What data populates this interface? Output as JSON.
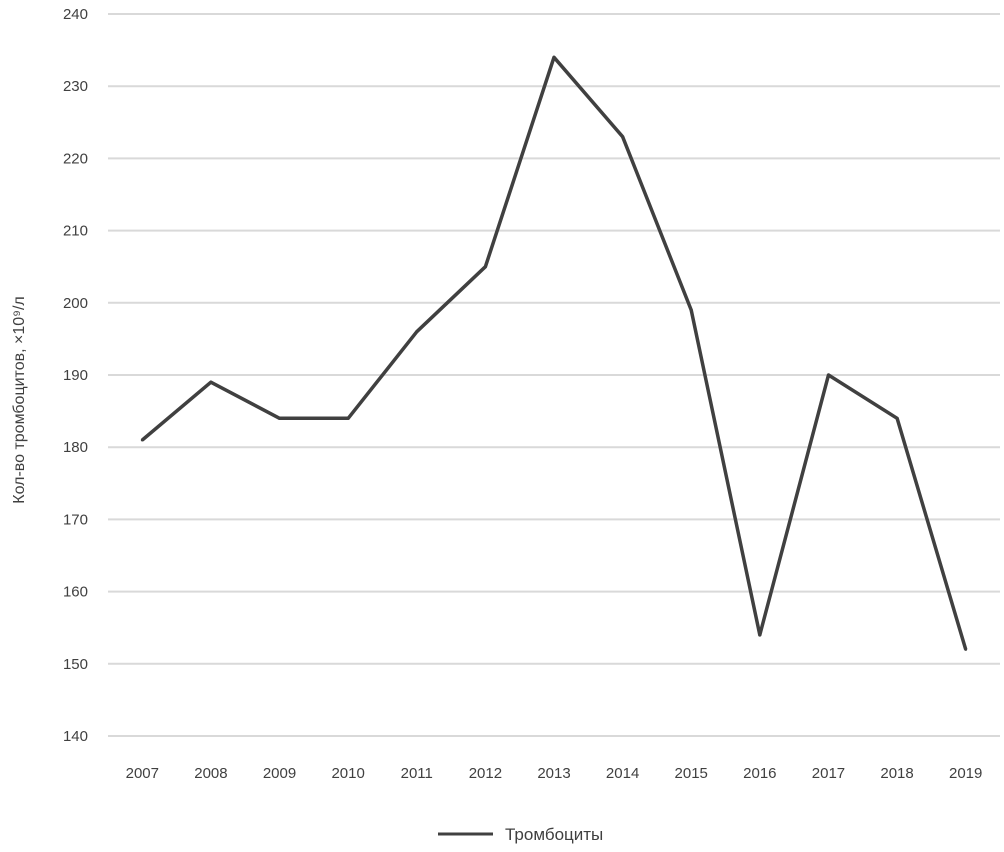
{
  "chart_data": {
    "type": "line",
    "title": "",
    "xlabel": "",
    "ylabel": "Кол-во тромбоцитов, ×10⁹/л",
    "categories": [
      "2007",
      "2008",
      "2009",
      "2010",
      "2011",
      "2012",
      "2013",
      "2014",
      "2015",
      "2016",
      "2017",
      "2018",
      "2019"
    ],
    "series": [
      {
        "name": "Тромбоциты",
        "color": "#404040",
        "values": [
          181,
          189,
          184,
          184,
          196,
          205,
          234,
          223,
          199,
          154,
          190,
          184,
          152
        ]
      }
    ],
    "ylim": [
      140,
      240
    ],
    "yticks": [
      140,
      150,
      160,
      170,
      180,
      190,
      200,
      210,
      220,
      230,
      240
    ],
    "grid": true,
    "legend": "bottom"
  }
}
